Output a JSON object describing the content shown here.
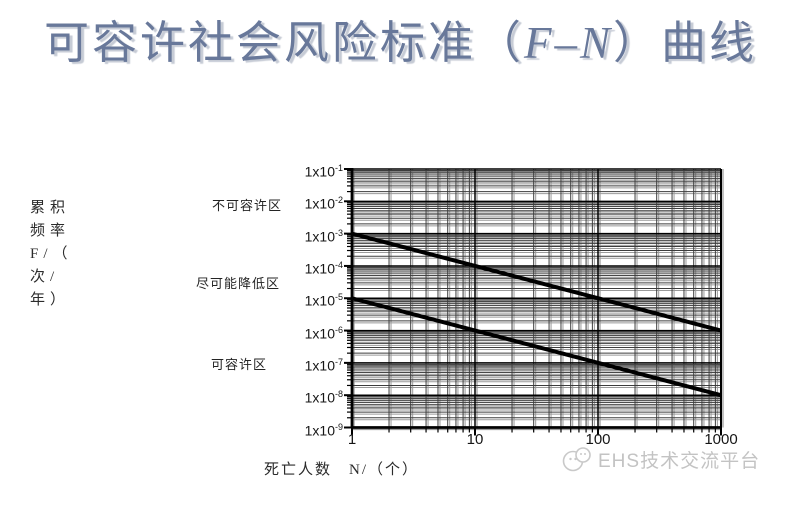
{
  "title": {
    "prefix": "可容许社会风险标准（",
    "fn": "F–N",
    "suffix": "）曲线"
  },
  "axes": {
    "y_label_lines": "累积\n频率\nF/（\n次/\n年）",
    "x_label": "死亡人数　N/（个）"
  },
  "watermark": {
    "text": "EHS技术交流平台"
  },
  "chart_data": {
    "type": "line",
    "title": "可容许社会风险标准（F-N）曲线",
    "xlabel": "死亡人数 N/（个）",
    "ylabel": "累积频率 F/（次/年）",
    "x_scale": "log",
    "y_scale": "log",
    "xlim": [
      1,
      1000
    ],
    "ylim": [
      1e-09,
      0.1
    ],
    "grid": "log major and minor gridlines, on",
    "legend": "none",
    "x_ticks": [
      "1",
      "10",
      "100",
      "1000"
    ],
    "y_tick_base": "1x10",
    "y_tick_exponents": [
      "-1",
      "-2",
      "-3",
      "-4",
      "-5",
      "-6",
      "-7",
      "-8",
      "-9"
    ],
    "series": [
      {
        "name": "upper-boundary-line",
        "points": [
          [
            1,
            0.001
          ],
          [
            1000,
            1e-06
          ]
        ]
      },
      {
        "name": "lower-boundary-line",
        "points": [
          [
            1,
            1e-05
          ],
          [
            1000,
            1e-08
          ]
        ]
      }
    ],
    "regions": [
      {
        "label": "不可容许区"
      },
      {
        "label": "尽可能降低区"
      },
      {
        "label": "可容许区"
      }
    ]
  }
}
